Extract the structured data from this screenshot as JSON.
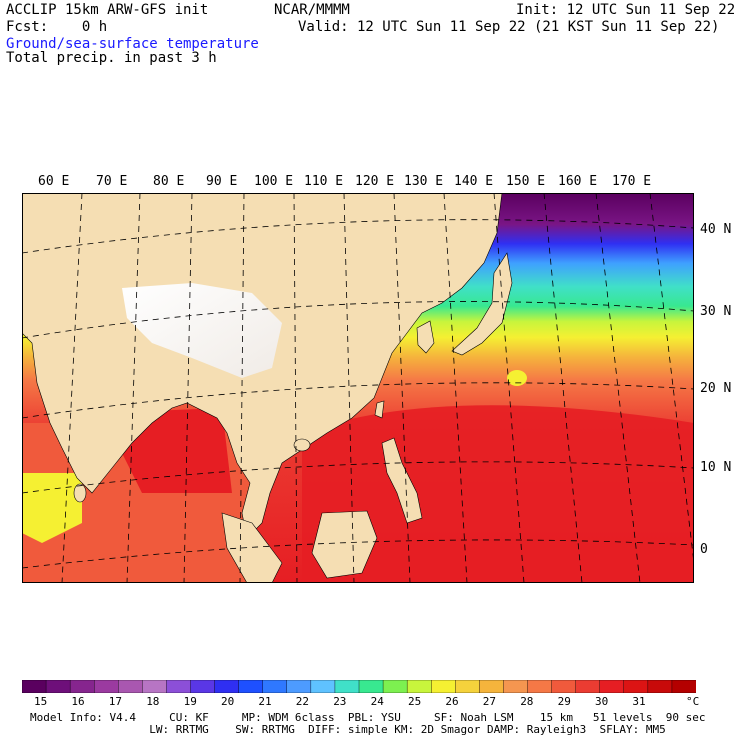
{
  "header": {
    "model_title": "ACCLIP 15km ARW-GFS init",
    "forecast": "Fcst:    0 h",
    "field1": "Ground/sea-surface temperature",
    "field2": "Total precip. in past 3 h",
    "center": "NCAR/MMMM",
    "init": "Init: 12 UTC Sun 11 Sep 22",
    "valid": "Valid: 12 UTC Sun 11 Sep 22 (21 KST Sun 11 Sep 22)"
  },
  "map": {
    "lon_labels": [
      "60 E",
      "70 E",
      "80 E",
      "90 E",
      "100 E",
      "110 E",
      "120 E",
      "130 E",
      "140 E",
      "150 E",
      "160 E",
      "170 E"
    ],
    "lat_labels": [
      "40 N",
      "30 N",
      "20 N",
      "10 N",
      "0"
    ],
    "colors": {
      "land": "#f5deb3",
      "plateau": "#ffffff",
      "ocean_warm": "#e8251e",
      "ocean_mid": "#f25a3a"
    }
  },
  "colorbar": {
    "labels": [
      "15",
      "16",
      "17",
      "18",
      "19",
      "20",
      "21",
      "22",
      "23",
      "24",
      "25",
      "26",
      "27",
      "28",
      "29",
      "30",
      "31"
    ],
    "unit": "°C",
    "colors": [
      "#5a005f",
      "#6e0f7a",
      "#86258e",
      "#9b3aa0",
      "#a957b0",
      "#b775c4",
      "#8c4fd8",
      "#5a37e6",
      "#2f2ff2",
      "#1e50ff",
      "#2f78ff",
      "#4d9bff",
      "#5fc2ff",
      "#40e0c8",
      "#38e890",
      "#7df050",
      "#c8f53c",
      "#f5f032",
      "#f5d23c",
      "#f5b43c",
      "#f59650",
      "#f57846",
      "#f05a3c",
      "#eb3c32",
      "#e61e23",
      "#dc1414",
      "#c80a0a",
      "#b40000"
    ]
  },
  "footer": {
    "line1": "Model Info: V4.4     CU: KF     MP: WDM 6class  PBL: YSU     SF: Noah LSM    15 km   51 levels  90 sec",
    "line2": "                  LW: RRTMG    SW: RRTMG  DIFF: simple KM: 2D Smagor DAMP: Rayleigh3  SFLAY: MM5"
  }
}
